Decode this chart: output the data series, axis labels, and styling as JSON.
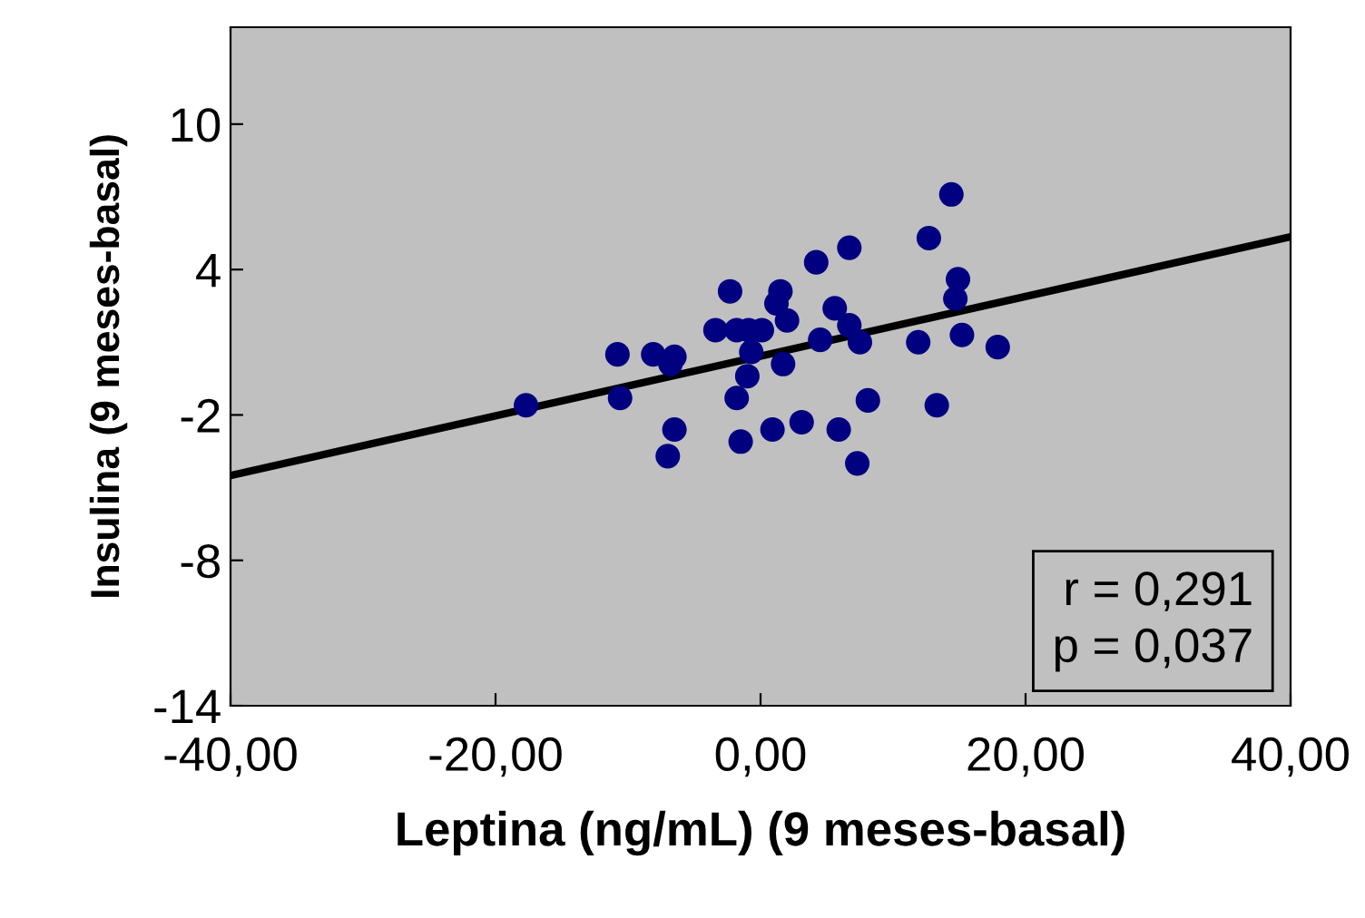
{
  "chart_data": {
    "type": "scatter",
    "xlabel": "Leptina (ng/mL) (9 meses-basal)",
    "ylabel": "Insulina (9 meses-basal)",
    "x": [
      -17.7,
      -10.8,
      -10.6,
      -8.1,
      -6.5,
      -6.8,
      -6.5,
      -7.0,
      -3.4,
      -2.3,
      -1.8,
      -0.9,
      0.1,
      -0.7,
      -1.0,
      -1.8,
      -1.5,
      1.5,
      1.2,
      2.0,
      1.7,
      0.9,
      3.1,
      4.2,
      4.5,
      5.6,
      6.7,
      6.7,
      7.5,
      5.9,
      8.1,
      7.3,
      11.9,
      12.7,
      14.4,
      14.9,
      14.7,
      15.2,
      13.3,
      17.9
    ],
    "series": [
      {
        "color": "#000080",
        "marker": "circle",
        "values": [
          -1.6,
          0.5,
          -1.3,
          0.5,
          0.4,
          0.1,
          -2.6,
          -3.7,
          1.5,
          3.1,
          1.5,
          1.5,
          1.5,
          0.6,
          -0.4,
          -1.3,
          -3.1,
          3.1,
          2.6,
          1.9,
          0.1,
          -2.6,
          -2.3,
          4.3,
          1.1,
          2.4,
          4.9,
          1.7,
          1.0,
          -2.6,
          -1.4,
          -4.0,
          1.0,
          5.3,
          7.1,
          3.6,
          2.8,
          1.3,
          -1.6,
          0.8
        ]
      },
      {
        "type": "line",
        "color": "#000000",
        "marker": "none",
        "line_style": "solid",
        "x": [
          -40,
          40
        ],
        "values": [
          -4.5,
          5.35
        ]
      }
    ],
    "xlim": [
      -40,
      40
    ],
    "xticks": [
      {
        "value": -40,
        "label": "-40,00"
      },
      {
        "value": -20,
        "label": "-20,00"
      },
      {
        "value": 0,
        "label": "0,00"
      },
      {
        "value": 20,
        "label": "20,00"
      },
      {
        "value": 40,
        "label": "40,00"
      }
    ],
    "ylim": [
      -14,
      14
    ],
    "yticks": [
      -14,
      -8,
      -2,
      4,
      10
    ],
    "grid": false,
    "legend": false,
    "annotations": [
      "r = 0,291\np = 0,037"
    ]
  }
}
